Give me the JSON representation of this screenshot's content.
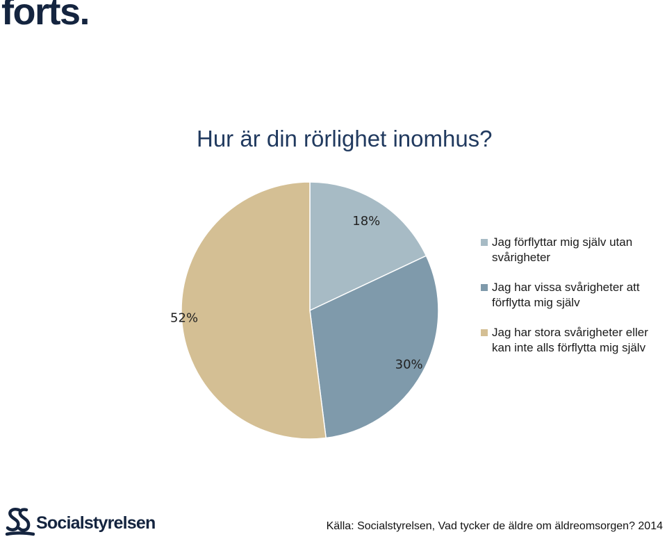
{
  "header": {
    "text": "forts."
  },
  "colors": {
    "heading": "#14243f",
    "title": "#213a5f",
    "slice_1": "#a7bbc5",
    "slice_2": "#7f9aab",
    "slice_3": "#d4bf94"
  },
  "chart_data": {
    "type": "pie",
    "title": "Hur är din rörlighet inomhus?",
    "series": [
      {
        "values": [
          18,
          30,
          52
        ],
        "labels": [
          "18%",
          "30%",
          "52%"
        ]
      }
    ],
    "categories": [
      "Jag förflyttar mig själv utan svårigheter",
      "Jag har vissa svårigheter att förflytta mig själv",
      "Jag har stora svårigheter eller kan inte alls förflytta mig själv"
    ],
    "legend_position": "right"
  },
  "legend": {
    "items": [
      {
        "label": "Jag förflyttar mig själv utan svårigheter",
        "color": "#a7bbc5"
      },
      {
        "label": "Jag har vissa svårigheter att förflytta mig själv",
        "color": "#7f9aab"
      },
      {
        "label": "Jag har stora svårigheter eller kan inte alls förflytta mig själv",
        "color": "#d4bf94"
      }
    ]
  },
  "footer": {
    "logo_text": "Socialstyrelsen",
    "source": "Källa: Socialstyrelsen, Vad tycker de äldre om äldreomsorgen? 2014"
  }
}
